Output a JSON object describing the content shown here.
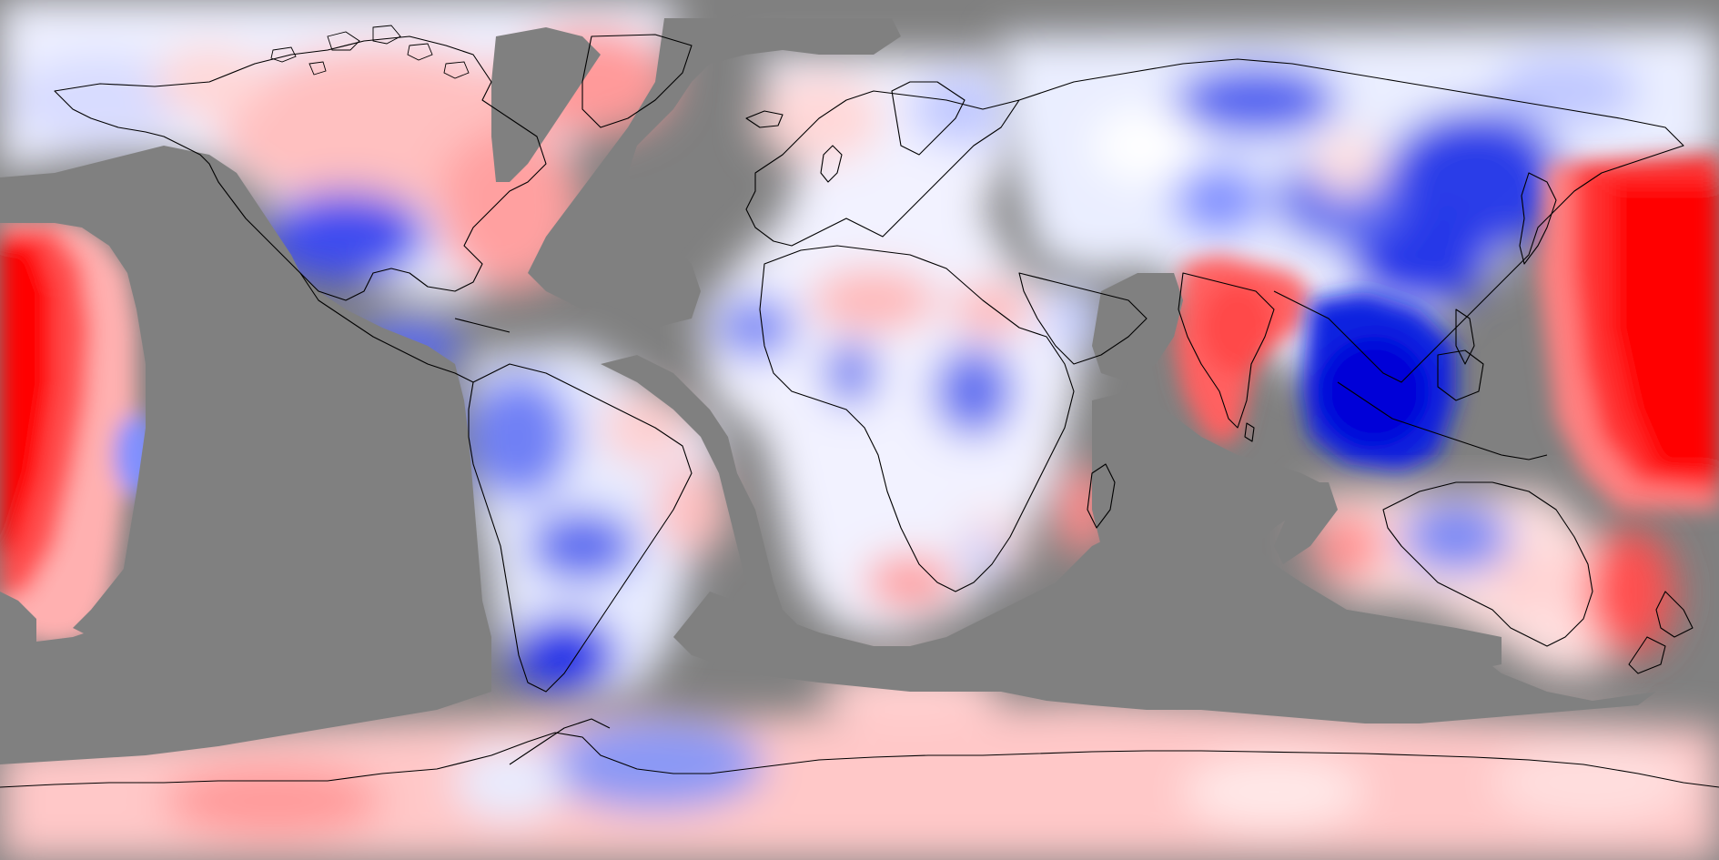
{
  "map": {
    "projection": "equirectangular",
    "missing_data_color": "#808080",
    "coastline_color": "#000000",
    "color_scale": {
      "negative_strong": "#0000e6",
      "negative_mid": "#5a6af0",
      "negative_light": "#c8d0ff",
      "neutral": "#f7f7ff",
      "positive_light": "#ffd0d0",
      "positive_mid": "#ff8080",
      "positive_strong": "#ff0000"
    },
    "legend": "none",
    "title": ""
  }
}
